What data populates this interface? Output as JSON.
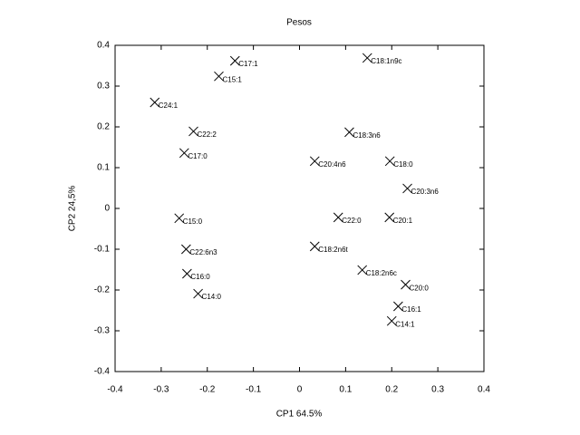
{
  "chart_data": {
    "type": "scatter",
    "title": "Pesos",
    "x_label": "CP1 64.5%",
    "y_label": "CP2 24,5%",
    "color": "#000000",
    "labels": [
      "C17:1",
      "C15:1",
      "C18:1n9c",
      "C24:1",
      "C22:2",
      "C17:0",
      "C18:3n6",
      "C20:4n6",
      "C18:0",
      "C20:3n6",
      "C15:0",
      "C22:0",
      "C20:1",
      "C22:6n3",
      "C18:2n6t",
      "C18:2n6c",
      "C16:0",
      "C20:0",
      "C14:0",
      "C16:1",
      "C14:1"
    ],
    "x": [
      -0.14,
      -0.175,
      0.147,
      -0.314,
      -0.23,
      -0.25,
      0.108,
      0.033,
      0.196,
      0.234,
      -0.261,
      0.084,
      0.195,
      -0.246,
      0.033,
      0.136,
      -0.244,
      0.23,
      -0.22,
      0.214,
      0.2
    ],
    "values": [
      0.362,
      0.324,
      0.369,
      0.26,
      0.189,
      0.136,
      0.187,
      0.116,
      0.116,
      0.049,
      -0.024,
      -0.022,
      -0.022,
      -0.1,
      -0.093,
      -0.151,
      -0.16,
      -0.187,
      -0.209,
      -0.24,
      -0.276
    ],
    "xlim": [
      -0.4,
      0.4
    ],
    "xticks": [
      -0.4,
      -0.3,
      -0.2,
      -0.1,
      0,
      0.1,
      0.2,
      0.3,
      0.4
    ],
    "ylim": [
      -0.4,
      0.4
    ],
    "yticks": [
      -0.4,
      -0.3,
      -0.2,
      -0.1,
      0,
      0.1,
      0.2,
      0.3,
      0.4
    ]
  }
}
